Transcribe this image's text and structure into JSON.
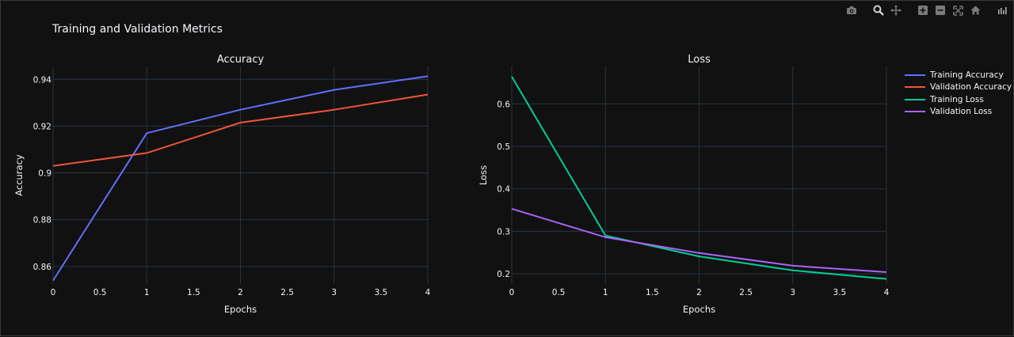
{
  "figure": {
    "title": "Training and Validation Metrics",
    "background": "#111111",
    "text_color": "#f2f5fa",
    "grid_color": "#283442"
  },
  "toolbar": {
    "icons": [
      "camera-icon",
      "zoom-icon",
      "pan-icon",
      "zoom-in-icon",
      "zoom-out-icon",
      "autoscale-icon",
      "reset-axes-icon",
      "plotly-logo-icon"
    ]
  },
  "legend": {
    "placement": "right",
    "items": [
      {
        "label": "Training Accuracy",
        "color": "#636efa"
      },
      {
        "label": "Validation Accuracy",
        "color": "#ef553b"
      },
      {
        "label": "Training Loss",
        "color": "#00cc96"
      },
      {
        "label": "Validation Loss",
        "color": "#ab63fa"
      }
    ]
  },
  "chart_data": [
    {
      "type": "line",
      "title": "Accuracy",
      "xlabel": "Epochs",
      "ylabel": "Accuracy",
      "xlim": [
        0,
        4
      ],
      "ylim": [
        0.8525,
        0.9455
      ],
      "xticks": [
        0,
        0.5,
        1,
        1.5,
        2,
        2.5,
        3,
        3.5,
        4
      ],
      "xtick_labels": [
        "0",
        "0.5",
        "1",
        "1.5",
        "2",
        "2.5",
        "3",
        "3.5",
        "4"
      ],
      "yticks": [
        0.86,
        0.88,
        0.9,
        0.92,
        0.94
      ],
      "ytick_labels": [
        "0.86",
        "0.88",
        "0.9",
        "0.92",
        "0.94"
      ],
      "grid": true,
      "x": [
        0,
        1,
        2,
        3,
        4
      ],
      "series": [
        {
          "name": "Training Accuracy",
          "color": "#636efa",
          "values": [
            0.854,
            0.917,
            0.927,
            0.9355,
            0.9413
          ]
        },
        {
          "name": "Validation Accuracy",
          "color": "#ef553b",
          "values": [
            0.903,
            0.9085,
            0.9215,
            0.927,
            0.9335
          ]
        }
      ]
    },
    {
      "type": "line",
      "title": "Loss",
      "xlabel": "Epochs",
      "ylabel": "Loss",
      "xlim": [
        0,
        4
      ],
      "ylim": [
        0.176,
        0.688
      ],
      "xticks": [
        0,
        0.5,
        1,
        1.5,
        2,
        2.5,
        3,
        3.5,
        4
      ],
      "xtick_labels": [
        "0",
        "0.5",
        "1",
        "1.5",
        "2",
        "2.5",
        "3",
        "3.5",
        "4"
      ],
      "yticks": [
        0.2,
        0.3,
        0.4,
        0.5,
        0.6
      ],
      "ytick_labels": [
        "0.2",
        "0.3",
        "0.4",
        "0.5",
        "0.6"
      ],
      "grid": true,
      "x": [
        0,
        1,
        2,
        3,
        4
      ],
      "series": [
        {
          "name": "Training Loss",
          "color": "#00cc96",
          "values": [
            0.664,
            0.29,
            0.241,
            0.208,
            0.188
          ]
        },
        {
          "name": "Validation Loss",
          "color": "#ab63fa",
          "values": [
            0.353,
            0.286,
            0.249,
            0.219,
            0.204
          ]
        }
      ]
    }
  ]
}
